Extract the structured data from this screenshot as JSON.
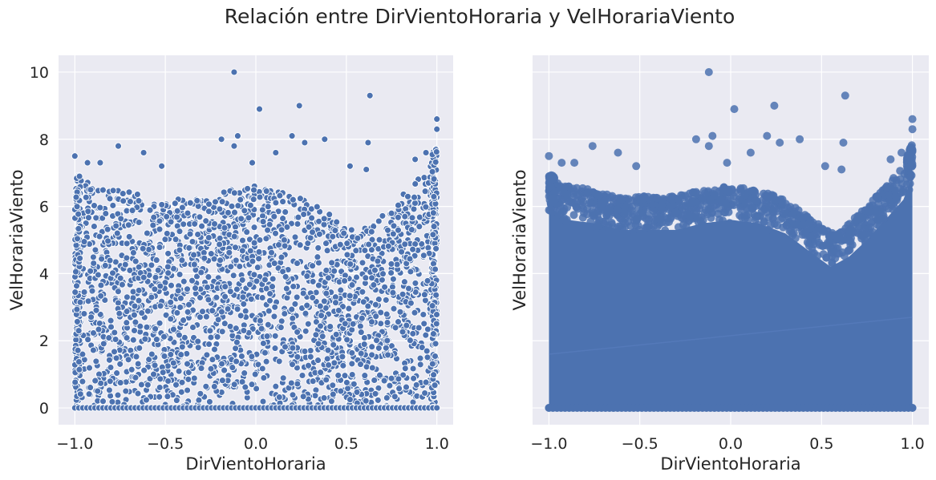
{
  "figure": {
    "title": "Relación entre DirVientoHoraria y VelHorariaViento"
  },
  "style": {
    "panel_background": "#eaeaf2",
    "grid_color": "#ffffff",
    "point_color": "#4c72b0",
    "text_color": "#262626"
  },
  "chart_data": [
    {
      "type": "scatter",
      "title": "",
      "xlabel": "DirVientoHoraria",
      "ylabel": "VelHorariaViento",
      "xlim": [
        -1.09,
        1.09
      ],
      "ylim": [
        -0.5,
        10.5
      ],
      "xticks": [
        -1.0,
        -0.5,
        0.0,
        0.5,
        1.0
      ],
      "xtick_labels": [
        "−1.0",
        "−0.5",
        "0.0",
        "0.5",
        "1.0"
      ],
      "yticks": [
        0,
        2,
        4,
        6,
        8,
        10
      ],
      "ytick_labels": [
        "0",
        "2",
        "4",
        "6",
        "8",
        "10"
      ],
      "grid": true,
      "marker_edge": "white",
      "outliers": [
        {
          "x": -0.12,
          "y": 10.0
        },
        {
          "x": 0.02,
          "y": 8.9
        },
        {
          "x": 0.24,
          "y": 9.0
        },
        {
          "x": 0.63,
          "y": 9.3
        },
        {
          "x": -0.76,
          "y": 7.8
        },
        {
          "x": -0.62,
          "y": 7.6
        },
        {
          "x": -0.19,
          "y": 8.0
        },
        {
          "x": -0.1,
          "y": 8.1
        },
        {
          "x": -0.12,
          "y": 7.8
        },
        {
          "x": 0.2,
          "y": 8.1
        },
        {
          "x": 0.27,
          "y": 7.9
        },
        {
          "x": 0.38,
          "y": 8.0
        },
        {
          "x": 0.62,
          "y": 7.9
        },
        {
          "x": 1.0,
          "y": 8.6
        },
        {
          "x": 1.0,
          "y": 8.3
        },
        {
          "x": -1.0,
          "y": 7.5
        },
        {
          "x": -0.93,
          "y": 7.3
        },
        {
          "x": -0.86,
          "y": 7.3
        },
        {
          "x": -0.52,
          "y": 7.2
        },
        {
          "x": -0.02,
          "y": 7.3
        },
        {
          "x": 0.11,
          "y": 7.6
        },
        {
          "x": 0.52,
          "y": 7.2
        },
        {
          "x": 0.61,
          "y": 7.1
        },
        {
          "x": 0.88,
          "y": 7.4
        },
        {
          "x": 0.94,
          "y": 7.6
        }
      ],
      "envelope": {
        "x": [
          -1.0,
          -0.9,
          -0.75,
          -0.6,
          -0.45,
          -0.3,
          -0.15,
          0.0,
          0.15,
          0.3,
          0.45,
          0.55,
          0.65,
          0.75,
          0.85,
          0.95,
          1.0
        ],
        "upper": [
          7.0,
          6.6,
          6.5,
          6.3,
          6.3,
          6.3,
          6.5,
          6.6,
          6.5,
          6.2,
          5.6,
          5.2,
          5.5,
          6.0,
          6.6,
          7.2,
          7.9
        ],
        "lower": 0.0
      }
    },
    {
      "type": "scatter",
      "title": "",
      "xlabel": "DirVientoHoraria",
      "ylabel": "VelHorariaViento",
      "xlim": [
        -1.09,
        1.09
      ],
      "ylim": [
        -0.5,
        10.5
      ],
      "xticks": [
        -1.0,
        -0.5,
        0.0,
        0.5,
        1.0
      ],
      "xtick_labels": [
        "−1.0",
        "−0.5",
        "0.0",
        "0.5",
        "1.0"
      ],
      "yticks": [
        0,
        2,
        4,
        6,
        8,
        10
      ],
      "show_ytick_labels": false,
      "grid": true,
      "marker_edge": "none",
      "regression_line": {
        "x": [
          -1.0,
          1.0
        ],
        "y": [
          1.6,
          2.7
        ]
      },
      "outliers": [
        {
          "x": -0.12,
          "y": 10.0
        },
        {
          "x": 0.02,
          "y": 8.9
        },
        {
          "x": 0.24,
          "y": 9.0
        },
        {
          "x": 0.63,
          "y": 9.3
        },
        {
          "x": -0.76,
          "y": 7.8
        },
        {
          "x": -0.62,
          "y": 7.6
        },
        {
          "x": -0.19,
          "y": 8.0
        },
        {
          "x": -0.1,
          "y": 8.1
        },
        {
          "x": -0.12,
          "y": 7.8
        },
        {
          "x": 0.2,
          "y": 8.1
        },
        {
          "x": 0.27,
          "y": 7.9
        },
        {
          "x": 0.38,
          "y": 8.0
        },
        {
          "x": 0.62,
          "y": 7.9
        },
        {
          "x": 1.0,
          "y": 8.6
        },
        {
          "x": 1.0,
          "y": 8.3
        },
        {
          "x": -1.0,
          "y": 7.5
        },
        {
          "x": -0.93,
          "y": 7.3
        },
        {
          "x": -0.86,
          "y": 7.3
        },
        {
          "x": -0.52,
          "y": 7.2
        },
        {
          "x": -0.02,
          "y": 7.3
        },
        {
          "x": 0.11,
          "y": 7.6
        },
        {
          "x": 0.52,
          "y": 7.2
        },
        {
          "x": 0.61,
          "y": 7.1
        },
        {
          "x": 0.88,
          "y": 7.4
        },
        {
          "x": 0.94,
          "y": 7.6
        }
      ],
      "envelope": {
        "x": [
          -1.0,
          -0.9,
          -0.75,
          -0.6,
          -0.45,
          -0.3,
          -0.15,
          0.0,
          0.15,
          0.3,
          0.45,
          0.55,
          0.65,
          0.75,
          0.85,
          0.95,
          1.0
        ],
        "upper": [
          7.0,
          6.6,
          6.5,
          6.3,
          6.3,
          6.3,
          6.5,
          6.6,
          6.5,
          6.2,
          5.6,
          5.2,
          5.5,
          6.0,
          6.6,
          7.2,
          7.9
        ],
        "lower": 0.0
      }
    }
  ]
}
